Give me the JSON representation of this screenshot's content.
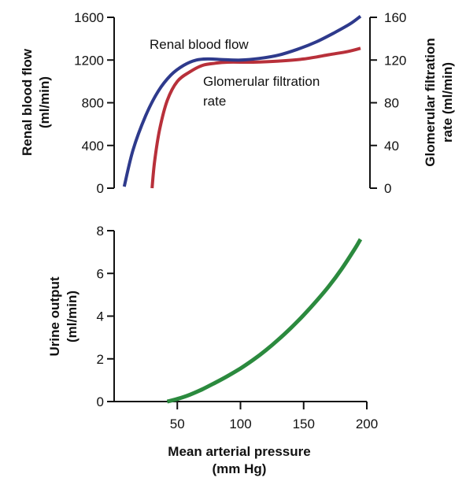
{
  "chart_data": [
    {
      "type": "line",
      "title": "",
      "xlabel": "",
      "ylabel": "Renal blood flow (ml/min)",
      "ylabel_lines": [
        "Renal blood flow",
        "(ml/min)"
      ],
      "y2label": "Glomerular filtration rate (ml/min)",
      "y2label_lines": [
        "Glomerular filtration",
        "rate (ml/min)"
      ],
      "xlim": [
        0,
        200
      ],
      "ylim": [
        0,
        1600
      ],
      "y2lim": [
        0,
        160
      ],
      "yticks": [
        0,
        400,
        800,
        1200,
        1600
      ],
      "ytick_labels": [
        "0",
        "400",
        "800",
        "1200",
        "1600"
      ],
      "y2ticks": [
        0,
        40,
        80,
        120,
        160
      ],
      "y2tick_labels": [
        "0",
        "40",
        "80",
        "120",
        "160"
      ],
      "grid": false,
      "legend": "none",
      "series": [
        {
          "name": "Renal blood flow",
          "axis": "left",
          "color": "#2e3a8c",
          "x": [
            8,
            15,
            25,
            35,
            45,
            55,
            65,
            75,
            85,
            100,
            115,
            130,
            145,
            160,
            175,
            187,
            195
          ],
          "y": [
            15,
            360,
            680,
            910,
            1060,
            1150,
            1200,
            1210,
            1205,
            1200,
            1215,
            1245,
            1300,
            1370,
            1460,
            1540,
            1610
          ]
        },
        {
          "name": "Glomerular filtration rate",
          "axis": "right",
          "color": "#b8303a",
          "x": [
            30,
            32,
            36,
            42,
            50,
            60,
            70,
            80,
            90,
            110,
            130,
            150,
            170,
            185,
            195
          ],
          "y": [
            0,
            25,
            55,
            82,
            100,
            109,
            115,
            117,
            118,
            118,
            119,
            121,
            125,
            128,
            131
          ]
        }
      ],
      "annotations": [
        {
          "text": "Renal blood flow"
        },
        {
          "lines": [
            "Glomerular filtration",
            "rate"
          ]
        }
      ]
    },
    {
      "type": "line",
      "title": "",
      "xlabel": "Mean arterial pressure (mm Hg)",
      "xlabel_lines": [
        "Mean arterial pressure",
        "(mm Hg)"
      ],
      "ylabel": "Urine output (ml/min)",
      "ylabel_lines": [
        "Urine output",
        "(ml/min)"
      ],
      "xlim": [
        0,
        200
      ],
      "ylim": [
        0,
        8
      ],
      "xticks": [
        50,
        100,
        150,
        200
      ],
      "xtick_labels": [
        "50",
        "100",
        "150",
        "200"
      ],
      "yticks": [
        0,
        2,
        4,
        6,
        8
      ],
      "ytick_labels": [
        "0",
        "2",
        "4",
        "6",
        "8"
      ],
      "grid": false,
      "legend": "none",
      "series": [
        {
          "color": "#2b8a3e",
          "x": [
            42,
            50,
            60,
            70,
            80,
            90,
            100,
            110,
            120,
            130,
            140,
            150,
            160,
            170,
            180,
            190,
            195
          ],
          "y": [
            0,
            0.12,
            0.32,
            0.58,
            0.88,
            1.2,
            1.55,
            1.95,
            2.4,
            2.9,
            3.45,
            4.05,
            4.7,
            5.4,
            6.2,
            7.1,
            7.6
          ]
        }
      ]
    }
  ]
}
